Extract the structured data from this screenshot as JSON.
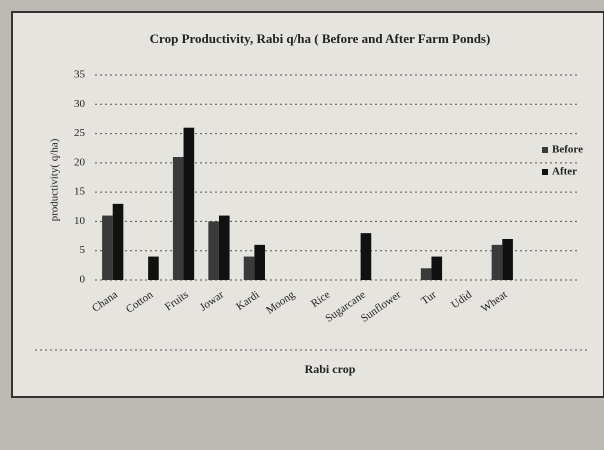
{
  "chart_data": {
    "type": "bar",
    "title": "Crop Productivity, Rabi q/ha ( Before and After Farm Ponds)",
    "x_label": "Rabi crop",
    "y_label": "productivity( q/ha)",
    "categories": [
      "Chana",
      "Cotton",
      "Fruits",
      "Jowar",
      "Kardi",
      "Moong",
      "Rice",
      "Sugarcane",
      "Sunflower",
      "Tur",
      "Udid",
      "Wheat"
    ],
    "series": [
      {
        "name": "Before",
        "color": "#3a3a3a",
        "values": [
          11,
          0,
          21,
          10,
          4,
          0,
          0,
          0,
          0,
          2,
          0,
          6
        ]
      },
      {
        "name": "After",
        "color": "#111111",
        "values": [
          13,
          4,
          26,
          11,
          6,
          0,
          0,
          8,
          0,
          4,
          0,
          7
        ]
      }
    ],
    "ylim": [
      0,
      35
    ],
    "yticks": [
      0,
      5,
      10,
      15,
      20,
      25,
      30,
      35
    ],
    "grid": true,
    "legend": "right"
  }
}
